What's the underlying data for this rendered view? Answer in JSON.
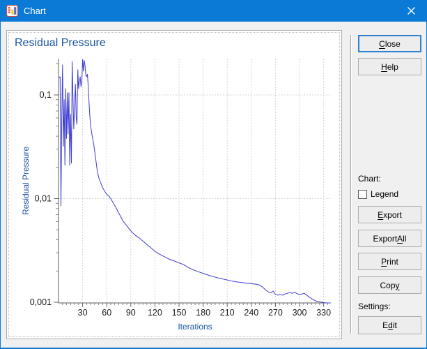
{
  "window": {
    "title": "Chart",
    "icons": {
      "app": "chart-app-icon",
      "close": "close-x"
    }
  },
  "panel": {
    "title": "Residual Pressure"
  },
  "right_panel": {
    "close": {
      "label": "Close",
      "mnemonic_index": 0
    },
    "help": {
      "label": "Help",
      "mnemonic_index": 0
    },
    "chart_section_label": "Chart:",
    "legend": {
      "label": "Legend",
      "checked": false
    },
    "export": {
      "label": "Export",
      "mnemonic_index": 0
    },
    "export_all": {
      "label": "Export All",
      "mnemonic_index": 7
    },
    "print": {
      "label": "Print",
      "mnemonic_index": 0
    },
    "copy": {
      "label": "Copy",
      "mnemonic_index": 3
    },
    "settings_section_label": "Settings:",
    "edit": {
      "label": "Edit",
      "mnemonic_index": 1
    }
  },
  "chart_data": {
    "type": "line",
    "title": "Residual Pressure",
    "xlabel": "Iterations",
    "ylabel": "Residual Pressure",
    "x_scale": "linear",
    "y_scale": "log",
    "xlim": [
      0,
      339
    ],
    "ylim": [
      0.001,
      0.224
    ],
    "x_ticks": [
      30,
      60,
      90,
      120,
      150,
      180,
      210,
      240,
      270,
      300,
      330
    ],
    "x_minor_tick_step": 5,
    "y_ticks": [
      {
        "value": 0.1,
        "label": "0,1",
        "grid": true
      },
      {
        "value": 0.01,
        "label": "0,01",
        "grid": true
      },
      {
        "value": 0.001,
        "label": "0,001",
        "grid": false
      }
    ],
    "grid": true,
    "legend_visible": false,
    "line_color": "#3d3dd2",
    "series": [
      {
        "name": "Residual Pressure",
        "points": [
          [
            1,
            0.145
          ],
          [
            2,
            0.15
          ],
          [
            3,
            0.0085
          ],
          [
            4,
            0.055
          ],
          [
            5,
            0.195
          ],
          [
            6,
            0.032
          ],
          [
            7,
            0.09
          ],
          [
            8,
            0.021
          ],
          [
            9,
            0.115
          ],
          [
            10,
            0.038
          ],
          [
            11,
            0.105
          ],
          [
            12,
            0.042
          ],
          [
            13,
            0.105
          ],
          [
            14,
            0.021
          ],
          [
            15,
            0.065
          ],
          [
            16,
            0.022
          ],
          [
            17,
            0.21
          ],
          [
            18,
            0.09
          ],
          [
            19,
            0.047
          ],
          [
            20,
            0.08
          ],
          [
            21,
            0.127
          ],
          [
            22,
            0.06
          ],
          [
            23,
            0.052
          ],
          [
            24,
            0.175
          ],
          [
            25,
            0.115
          ],
          [
            26,
            0.135
          ],
          [
            27,
            0.15
          ],
          [
            28,
            0.12
          ],
          [
            29,
            0.135
          ],
          [
            30,
            0.22
          ],
          [
            31,
            0.17
          ],
          [
            32,
            0.215
          ],
          [
            33,
            0.19
          ],
          [
            34,
            0.155
          ],
          [
            35,
            0.15
          ],
          [
            36,
            0.158
          ],
          [
            37,
            0.12
          ],
          [
            38,
            0.085
          ],
          [
            39,
            0.062
          ],
          [
            40,
            0.05
          ],
          [
            42,
            0.04
          ],
          [
            44,
            0.033
          ],
          [
            46,
            0.025
          ],
          [
            48,
            0.019
          ],
          [
            50,
            0.016
          ],
          [
            52,
            0.0145
          ],
          [
            55,
            0.0127
          ],
          [
            58,
            0.0116
          ],
          [
            60,
            0.011
          ],
          [
            63,
            0.0105
          ],
          [
            65,
            0.01
          ],
          [
            68,
            0.0091
          ],
          [
            71,
            0.0083
          ],
          [
            74,
            0.0075
          ],
          [
            77,
            0.0068
          ],
          [
            80,
            0.0061
          ],
          [
            84,
            0.0056
          ],
          [
            88,
            0.0051
          ],
          [
            92,
            0.0047
          ],
          [
            96,
            0.0044
          ],
          [
            100,
            0.0042
          ],
          [
            105,
            0.0039
          ],
          [
            110,
            0.0036
          ],
          [
            115,
            0.00335
          ],
          [
            120,
            0.0031
          ],
          [
            126,
            0.0029
          ],
          [
            132,
            0.00275
          ],
          [
            138,
            0.0026
          ],
          [
            144,
            0.0025
          ],
          [
            150,
            0.0024
          ],
          [
            156,
            0.0023
          ],
          [
            162,
            0.00215
          ],
          [
            168,
            0.00205
          ],
          [
            174,
            0.00197
          ],
          [
            180,
            0.0019
          ],
          [
            186,
            0.00183
          ],
          [
            192,
            0.00177
          ],
          [
            198,
            0.00172
          ],
          [
            204,
            0.00168
          ],
          [
            210,
            0.00164
          ],
          [
            216,
            0.0016
          ],
          [
            222,
            0.00157
          ],
          [
            228,
            0.00155
          ],
          [
            234,
            0.00153
          ],
          [
            240,
            0.00151
          ],
          [
            246,
            0.00149
          ],
          [
            250,
            0.00147
          ],
          [
            254,
            0.0014
          ],
          [
            258,
            0.00131
          ],
          [
            261,
            0.00126
          ],
          [
            264,
            0.00123
          ],
          [
            267,
            0.00128
          ],
          [
            270,
            0.00119
          ],
          [
            273,
            0.00117
          ],
          [
            276,
            0.00119
          ],
          [
            279,
            0.00117
          ],
          [
            282,
            0.0012
          ],
          [
            285,
            0.00122
          ],
          [
            288,
            0.00124
          ],
          [
            291,
            0.00122
          ],
          [
            294,
            0.00125
          ],
          [
            297,
            0.00121
          ],
          [
            300,
            0.00118
          ],
          [
            303,
            0.0012
          ],
          [
            306,
            0.00122
          ],
          [
            309,
            0.00117
          ],
          [
            312,
            0.00112
          ],
          [
            316,
            0.00107
          ],
          [
            320,
            0.00103
          ],
          [
            324,
            0.00101
          ],
          [
            328,
            0.001
          ],
          [
            331,
            0.00099
          ],
          [
            334,
            0.00098
          ],
          [
            337,
            0.00096
          ]
        ]
      }
    ]
  }
}
